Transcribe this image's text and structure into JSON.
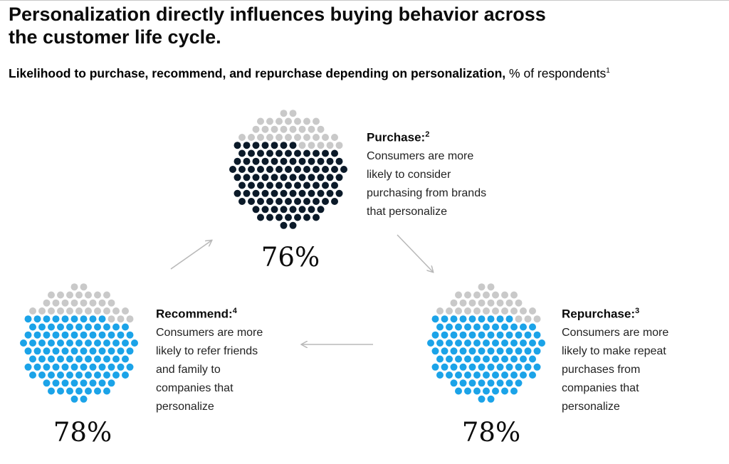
{
  "title": "Personalization directly influences buying behavior across the customer life cycle.",
  "subtitle": {
    "lead": "Likelihood to purchase, recommend, and repurchase depending on personalization,",
    "unit": "% of respondents",
    "footnote": "1"
  },
  "colors": {
    "grey": "#c9c9c9",
    "dark": "#0b1a29",
    "blue": "#1ba3e8",
    "arrow": "#b8b8b8"
  },
  "chart_data": {
    "type": "dot-matrix",
    "unit": "% of respondents",
    "items": [
      {
        "key": "purchase",
        "label": "Purchase:",
        "footnote": "2",
        "description": "Consumers are more\nlikely to consider\npurchasing from brands\nthat personalize",
        "value": 76,
        "display": "76%",
        "color": "#0b1a29"
      },
      {
        "key": "repurchase",
        "label": "Repurchase:",
        "footnote": "3",
        "description": "Consumers are more\nlikely to make repeat\npurchases from\ncompanies that\npersonalize",
        "value": 78,
        "display": "78%",
        "color": "#1ba3e8"
      },
      {
        "key": "recommend",
        "label": "Recommend:",
        "footnote": "4",
        "description": "Consumers are more\nlikely to refer friends\nand family to\ncompanies that\npersonalize",
        "value": 78,
        "display": "78%",
        "color": "#1ba3e8"
      }
    ],
    "flow": [
      "purchase",
      "repurchase",
      "recommend",
      "purchase"
    ]
  }
}
